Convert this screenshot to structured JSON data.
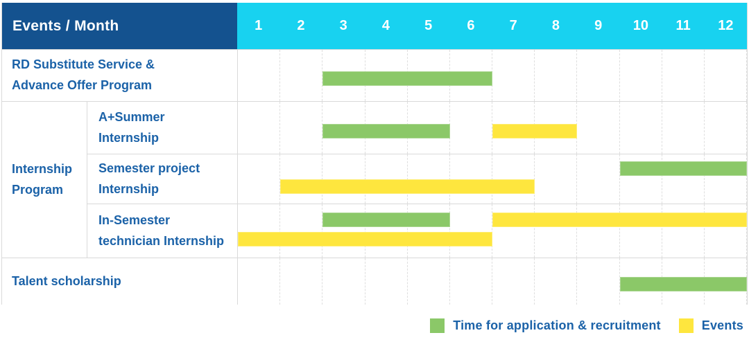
{
  "table_header": {
    "label": "Events / Month"
  },
  "colors": {
    "header_bg": "#14528F",
    "months_bg": "#18D2F0",
    "green": "#8BC868",
    "yellow": "#FEE63E",
    "label_text": "#1B62A8",
    "border": "#D9D9D9",
    "gridline_dash": "#DEDEDE",
    "header_text": "#FFFFFF"
  },
  "chart_data": {
    "type": "bar",
    "subtype": "gantt",
    "title": "Events / Month",
    "x_axis": {
      "label": "Month",
      "categories": [
        "1",
        "2",
        "3",
        "4",
        "5",
        "6",
        "7",
        "8",
        "9",
        "10",
        "11",
        "12"
      ],
      "range": [
        1,
        12
      ]
    },
    "grid": true,
    "group_label": "Internship Program",
    "group_label_lines": [
      "Internship",
      "Program"
    ],
    "rows": [
      {
        "group": "",
        "label": "RD Substitute Service & Advance Offer Program",
        "label_lines": [
          "RD Substitute Service &",
          "Advance Offer Program"
        ],
        "bars": [
          {
            "series": "Time for application & recruitment",
            "start_month": 3,
            "end_month": 6,
            "lane": "single"
          }
        ]
      },
      {
        "group": "Internship Program",
        "label": "A+Summer Internship",
        "label_lines": [
          "A+Summer",
          "Internship"
        ],
        "bars": [
          {
            "series": "Time for application & recruitment",
            "start_month": 3,
            "end_month": 5,
            "lane": "single"
          },
          {
            "series": "Events",
            "start_month": 7,
            "end_month": 8,
            "lane": "single"
          }
        ]
      },
      {
        "group": "Internship Program",
        "label": "Semester project Internship",
        "label_lines": [
          "Semester project",
          "Internship"
        ],
        "bars": [
          {
            "series": "Time for application & recruitment",
            "start_month": 10,
            "end_month": 12,
            "lane": "top"
          },
          {
            "series": "Events",
            "start_month": 2,
            "end_month": 7,
            "lane": "bottom"
          }
        ]
      },
      {
        "group": "Internship Program",
        "label": "In-Semester technician Internship",
        "label_lines": [
          "In-Semester",
          "technician Internship"
        ],
        "bars": [
          {
            "series": "Time for application & recruitment",
            "start_month": 3,
            "end_month": 5,
            "lane": "top"
          },
          {
            "series": "Events",
            "start_month": 7,
            "end_month": 12,
            "lane": "top"
          },
          {
            "series": "Events",
            "start_month": 1,
            "end_month": 6,
            "lane": "bottom"
          }
        ]
      },
      {
        "group": "",
        "label": "Talent scholarship",
        "label_lines": [
          "Talent scholarship"
        ],
        "bars": [
          {
            "series": "Time for application & recruitment",
            "start_month": 10,
            "end_month": 12,
            "lane": "single"
          }
        ]
      }
    ],
    "legend": [
      {
        "label": "Time for application & recruitment",
        "color": "#8BC868"
      },
      {
        "label": "Events",
        "color": "#FEE63E"
      }
    ],
    "legend_position": "bottom-right"
  }
}
